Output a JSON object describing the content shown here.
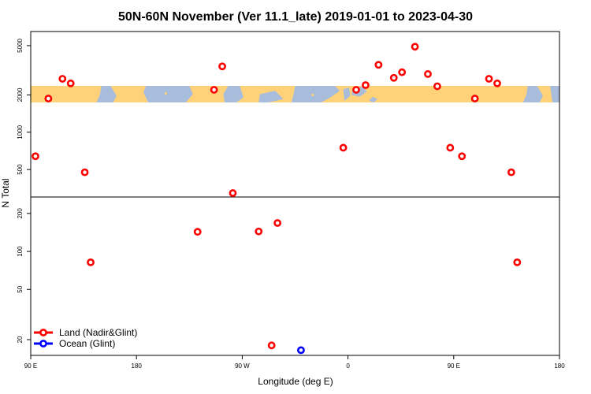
{
  "chart_data": {
    "type": "scatter",
    "title": "50N-60N November (Ver 11.1_late)   2019-01-01 to 2023-04-30",
    "xlabel": "Longitude (deg E)",
    "ylabel": "N Total",
    "x_ticks": [
      {
        "value": 90,
        "label": "90 E"
      },
      {
        "value": 180,
        "label": "180"
      },
      {
        "value": 270,
        "label": "90 W"
      },
      {
        "value": 360,
        "label": "0"
      },
      {
        "value": 450,
        "label": "90 E"
      },
      {
        "value": 540,
        "label": "180"
      }
    ],
    "xlim": [
      90,
      540
    ],
    "y_scale": "log",
    "upper_panel": {
      "ylim": [
        300,
        6500
      ],
      "y_ticks": [
        {
          "value": 500,
          "label": "500"
        },
        {
          "value": 1000,
          "label": "1000"
        },
        {
          "value": 2000,
          "label": "2000"
        },
        {
          "value": 5000,
          "label": "5000"
        }
      ]
    },
    "lower_panel": {
      "ylim": [
        15,
        270
      ],
      "y_ticks": [
        {
          "value": 20,
          "label": "20"
        },
        {
          "value": 50,
          "label": "50"
        },
        {
          "value": 100,
          "label": "100"
        },
        {
          "value": 200,
          "label": "200"
        }
      ]
    },
    "map_strip": {
      "latitudes": "50N-60N",
      "land_color": "#ffd27a",
      "ocean_color": "#a8bcdc"
    },
    "series": [
      {
        "name": "Land (Nadir&Glint)",
        "color": "#ff0000",
        "points": [
          {
            "x": 94,
            "y": 640
          },
          {
            "x": 105,
            "y": 1870
          },
          {
            "x": 117,
            "y": 2700
          },
          {
            "x": 124,
            "y": 2480
          },
          {
            "x": 136,
            "y": 475
          },
          {
            "x": 141,
            "y": 82
          },
          {
            "x": 232,
            "y": 143
          },
          {
            "x": 246,
            "y": 2200
          },
          {
            "x": 253,
            "y": 3400
          },
          {
            "x": 262,
            "y": 290
          },
          {
            "x": 284,
            "y": 144
          },
          {
            "x": 295,
            "y": 18
          },
          {
            "x": 300,
            "y": 168
          },
          {
            "x": 356,
            "y": 750
          },
          {
            "x": 367,
            "y": 2200
          },
          {
            "x": 375,
            "y": 2400
          },
          {
            "x": 386,
            "y": 3500
          },
          {
            "x": 399,
            "y": 2750
          },
          {
            "x": 406,
            "y": 3050
          },
          {
            "x": 417,
            "y": 4900
          },
          {
            "x": 428,
            "y": 2950
          },
          {
            "x": 436,
            "y": 2350
          },
          {
            "x": 447,
            "y": 750
          },
          {
            "x": 457,
            "y": 640
          },
          {
            "x": 468,
            "y": 1870
          },
          {
            "x": 480,
            "y": 2700
          },
          {
            "x": 487,
            "y": 2480
          },
          {
            "x": 499,
            "y": 475
          },
          {
            "x": 504,
            "y": 82
          }
        ]
      },
      {
        "name": "Ocean (Glint)",
        "color": "#0000ff",
        "points": [
          {
            "x": 320,
            "y": 16.5
          }
        ]
      }
    ],
    "legend": {
      "position": "bottom-left"
    }
  }
}
